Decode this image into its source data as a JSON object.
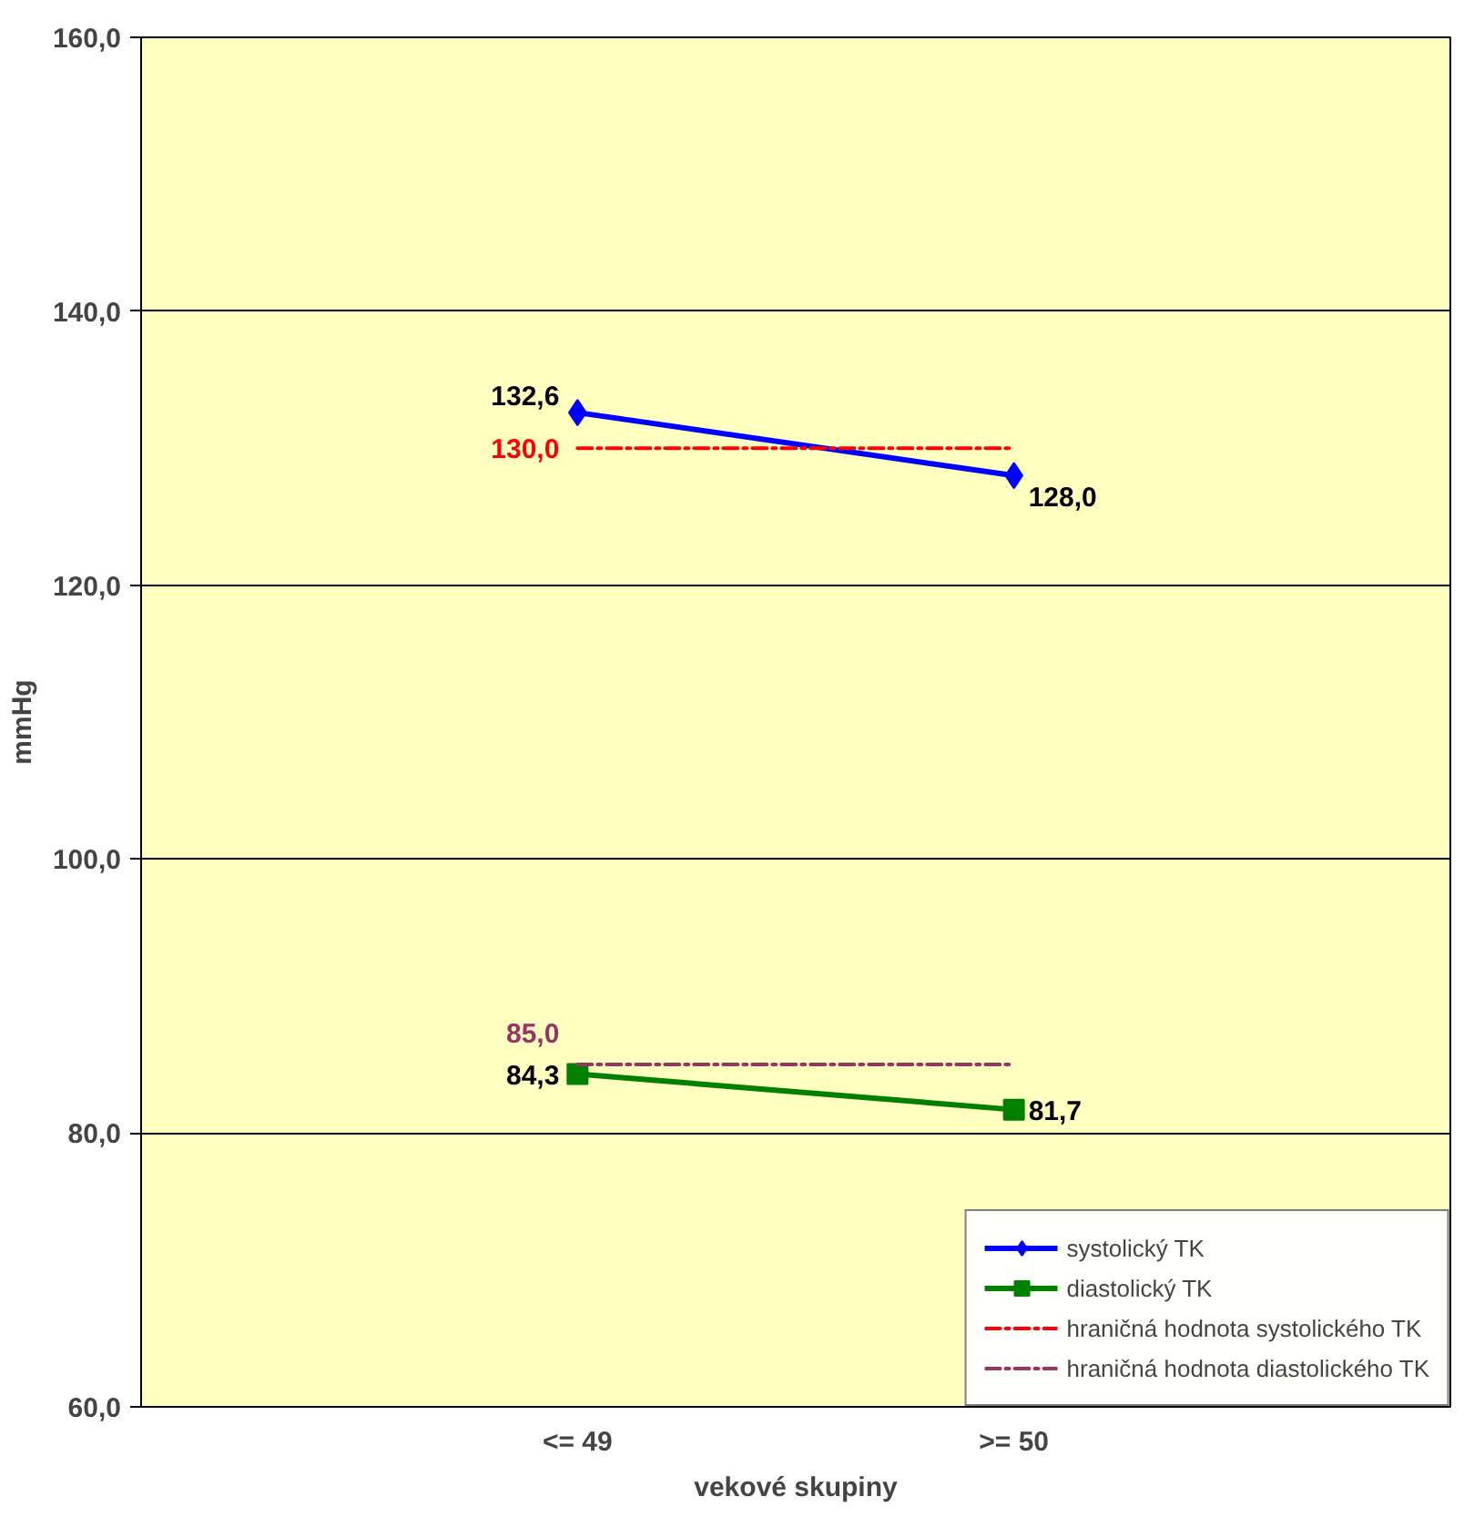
{
  "chart_data": {
    "type": "line",
    "xlabel": "vekové skupiny",
    "ylabel": "mmHg",
    "categories": [
      "<= 49",
      ">= 50"
    ],
    "ylim": [
      60,
      160
    ],
    "yticks": [
      {
        "value": 60,
        "label": "60,0"
      },
      {
        "value": 80,
        "label": "80,0"
      },
      {
        "value": 100,
        "label": "100,0"
      },
      {
        "value": 120,
        "label": "120,0"
      },
      {
        "value": 140,
        "label": "140,0"
      },
      {
        "value": 160,
        "label": "160,0"
      }
    ],
    "grid": "y",
    "legend": "bottom right",
    "series": [
      {
        "name": "systolický TK",
        "color": "#0000ff",
        "values": [
          132.6,
          128.0
        ],
        "marker": "diamond",
        "line_style": "solid",
        "value_labels": [
          "132,6",
          "128,0"
        ]
      },
      {
        "name": "diastolický TK",
        "color": "#008000",
        "values": [
          84.3,
          81.7
        ],
        "marker": "square",
        "line_style": "solid",
        "value_labels": [
          "84,3",
          "81,7"
        ]
      },
      {
        "name": "hraničná hodnota systolického TK",
        "color": "#ff0000",
        "values": [
          130.0,
          130.0
        ],
        "marker": "none",
        "line_style": "dashed",
        "value_labels": [
          "130,0",
          null
        ]
      },
      {
        "name": "hraničná hodnota diastolického TK",
        "color": "#993366",
        "values": [
          85.0,
          85.0
        ],
        "marker": "none",
        "line_style": "dashed",
        "value_labels": [
          "85,0",
          null
        ]
      }
    ]
  }
}
